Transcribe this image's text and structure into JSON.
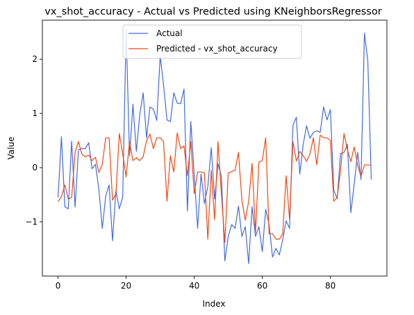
{
  "chart_data": {
    "type": "line",
    "title": "vx_shot_accuracy - Actual vs Predicted using KNeighborsRegressor",
    "xlabel": "Index",
    "ylabel": "Value",
    "xlim": [
      -4.6,
      96.6
    ],
    "ylim": [
      -2.0,
      2.72
    ],
    "xticks": [
      0,
      20,
      40,
      60,
      80
    ],
    "yticks": [
      -1,
      0,
      1,
      2
    ],
    "xtick_labels": [
      "0",
      "20",
      "40",
      "60",
      "80"
    ],
    "ytick_labels": [
      "−1",
      "0",
      "1",
      "2"
    ],
    "grid": false,
    "legend_position": "upper-center",
    "series": [
      {
        "name": "Actual",
        "color": "#4169e1",
        "x": [
          0,
          1,
          2,
          3,
          4,
          5,
          6,
          7,
          8,
          9,
          10,
          11,
          12,
          13,
          14,
          15,
          16,
          17,
          18,
          19,
          20,
          21,
          22,
          23,
          24,
          25,
          26,
          27,
          28,
          29,
          30,
          31,
          32,
          33,
          34,
          35,
          36,
          37,
          38,
          39,
          40,
          41,
          42,
          43,
          44,
          45,
          46,
          47,
          48,
          49,
          50,
          51,
          52,
          53,
          54,
          55,
          56,
          57,
          58,
          59,
          60,
          61,
          62,
          63,
          64,
          65,
          66,
          67,
          68,
          69,
          70,
          71,
          72,
          73,
          74,
          75,
          76,
          77,
          78,
          79,
          80,
          81,
          82,
          83,
          84,
          85,
          86,
          87,
          88,
          89,
          90,
          91,
          92
        ],
        "values": [
          -0.55,
          0.57,
          -0.72,
          -0.76,
          0.49,
          -0.73,
          0.33,
          0.35,
          0.35,
          0.46,
          -0.02,
          0.06,
          -0.4,
          -1.12,
          -0.53,
          -0.32,
          -1.35,
          -0.42,
          -0.76,
          -0.54,
          2.55,
          0.22,
          1.17,
          0.3,
          0.98,
          1.38,
          0.55,
          1.12,
          1.08,
          0.87,
          2.06,
          1.52,
          0.88,
          0.85,
          1.38,
          1.19,
          1.18,
          1.45,
          -0.8,
          0.85,
          -0.12,
          -1.12,
          -0.12,
          -0.66,
          -0.35,
          0.37,
          -0.58,
          0.07,
          -0.17,
          -1.72,
          -1.27,
          -1.05,
          -1.12,
          -0.71,
          -1.27,
          -1.09,
          -1.77,
          -0.72,
          -1.27,
          -1.09,
          -1.55,
          -0.77,
          -1.05,
          -1.65,
          -1.49,
          -1.61,
          -1.33,
          -0.98,
          -1.12,
          0.78,
          0.93,
          -0.12,
          0.42,
          0.77,
          0.54,
          0.65,
          0.68,
          0.65,
          1.12,
          0.88,
          1.07,
          -0.42,
          -0.57,
          0.26,
          0.28,
          0.43,
          -0.83,
          -0.3,
          0.28,
          -0.22,
          2.48,
          1.96,
          -0.22
        ]
      },
      {
        "name": "Predicted - vx_shot_accuracy",
        "color": "#f0470f",
        "x": [
          0,
          1,
          2,
          3,
          4,
          5,
          6,
          7,
          8,
          9,
          10,
          11,
          12,
          13,
          14,
          15,
          16,
          17,
          18,
          19,
          20,
          21,
          22,
          23,
          24,
          25,
          26,
          27,
          28,
          29,
          30,
          31,
          32,
          33,
          34,
          35,
          36,
          37,
          38,
          39,
          40,
          41,
          42,
          43,
          44,
          45,
          46,
          47,
          48,
          49,
          50,
          51,
          52,
          53,
          54,
          55,
          56,
          57,
          58,
          59,
          60,
          61,
          62,
          63,
          64,
          65,
          66,
          67,
          68,
          69,
          70,
          71,
          72,
          73,
          74,
          75,
          76,
          77,
          78,
          79,
          80,
          81,
          82,
          83,
          84,
          85,
          86,
          87,
          88,
          89,
          90,
          91,
          92
        ],
        "values": [
          -0.63,
          -0.53,
          -0.32,
          -0.58,
          -0.55,
          0.28,
          0.48,
          0.25,
          0.2,
          0.23,
          0.13,
          0.19,
          -0.09,
          0.06,
          0.55,
          0.55,
          -0.6,
          -0.49,
          0.63,
          0.25,
          -0.17,
          0.48,
          0.13,
          0.18,
          0.13,
          0.2,
          0.5,
          0.62,
          0.35,
          0.55,
          0.55,
          0.48,
          -0.62,
          0.22,
          -0.08,
          0.64,
          0.35,
          0.4,
          -0.15,
          0.48,
          -0.48,
          -0.08,
          -0.08,
          -0.1,
          -1.32,
          -0.05,
          -0.96,
          0.48,
          -0.5,
          -1.38,
          -0.1,
          -0.07,
          -0.05,
          0.28,
          -0.6,
          -0.97,
          -0.62,
          0.08,
          -1.2,
          0.1,
          0.13,
          0.55,
          -1.22,
          -1.22,
          -1.32,
          -1.32,
          -1.22,
          -0.15,
          -0.95,
          0.48,
          0.12,
          0.3,
          0.22,
          0.12,
          0.25,
          0.55,
          0.05,
          0.6,
          0.55,
          0.55,
          0.5,
          -0.62,
          -0.55,
          -0.05,
          0.63,
          0.33,
          0.11,
          0.38,
          0.04,
          -0.16,
          0.05,
          0.05,
          0.05
        ]
      }
    ]
  }
}
